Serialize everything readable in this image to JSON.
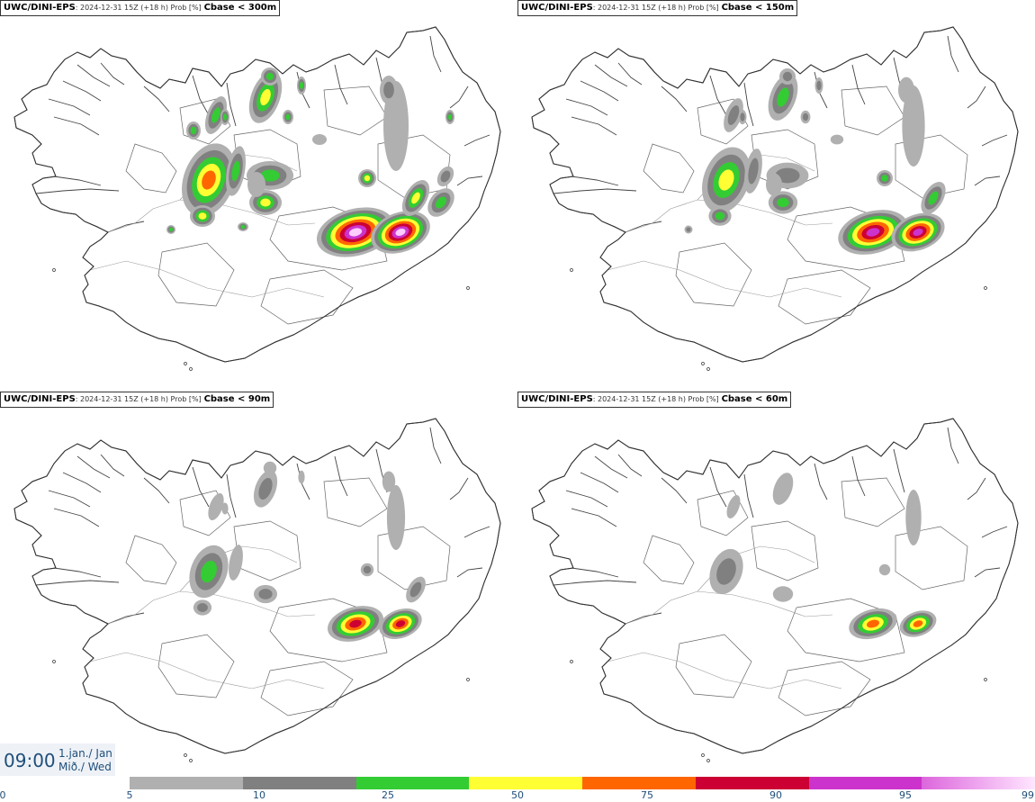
{
  "panels": [
    {
      "model": "UWC/DINI-EPS",
      "info": ": 2024-12-31 15Z (+18 h) Prob [%]",
      "variable": "Cbase < 300m",
      "level": 4
    },
    {
      "model": "UWC/DINI-EPS",
      "info": ": 2024-12-31 15Z (+18 h) Prob [%]",
      "variable": "Cbase < 150m",
      "level": 3
    },
    {
      "model": "UWC/DINI-EPS",
      "info": ": 2024-12-31 15Z (+18 h) Prob [%]",
      "variable": "Cbase < 90m",
      "level": 2
    },
    {
      "model": "UWC/DINI-EPS",
      "info": ": 2024-12-31 15Z (+18 h) Prob [%]",
      "variable": "Cbase < 60m",
      "level": 1
    }
  ],
  "time": {
    "clock": "09:00",
    "date_line": "1.jan./ Jan",
    "day_line": "Mið./ Wed"
  },
  "colorbar": {
    "ticks": [
      "0",
      "5",
      "10",
      "25",
      "50",
      "75",
      "90",
      "95",
      "99"
    ],
    "colors": [
      "#b0b0b0",
      "#808080",
      "#33cc33",
      "#ffff33",
      "#ff6600",
      "#cc0033",
      "#cc33cc",
      "#ffccff"
    ]
  }
}
